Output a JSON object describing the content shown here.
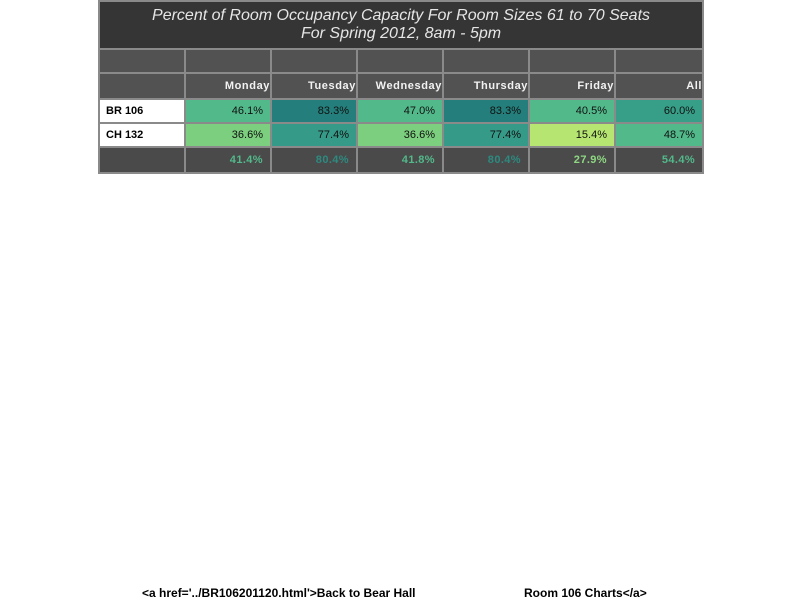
{
  "chart_data": {
    "type": "table",
    "title": "Percent of Room Occupancy Capacity For Room Sizes 61 to 70 Seats",
    "subtitle": "For Spring 2012, 8am - 5pm",
    "columns": [
      "Monday",
      "Tuesday",
      "Wednesday",
      "Thursday",
      "Friday",
      "All"
    ],
    "rows": [
      {
        "label": "BR 106",
        "values": [
          "46.1%",
          "83.3%",
          "47.0%",
          "83.3%",
          "40.5%",
          "60.0%"
        ],
        "colors": [
          "#52b98a",
          "#247f7c",
          "#52b98a",
          "#247f7c",
          "#52b98a",
          "#379f88"
        ]
      },
      {
        "label": "CH 132",
        "values": [
          "36.6%",
          "77.4%",
          "36.6%",
          "77.4%",
          "15.4%",
          "48.7%"
        ],
        "colors": [
          "#7ccf7e",
          "#359a87",
          "#7ccf7e",
          "#359a87",
          "#b6e671",
          "#52b98a"
        ]
      }
    ],
    "totals": {
      "values": [
        "41.4%",
        "80.4%",
        "41.8%",
        "80.4%",
        "27.9%",
        "54.4%"
      ],
      "colors": [
        "#52b98a",
        "#2c8a80",
        "#52b98a",
        "#2c8a80",
        "#8ed882",
        "#52b98a"
      ]
    }
  },
  "footer": {
    "left_text": "<a href='../BR106201120.html'>Back to Bear Hall",
    "right_text": "Room 106 Charts</a>"
  }
}
